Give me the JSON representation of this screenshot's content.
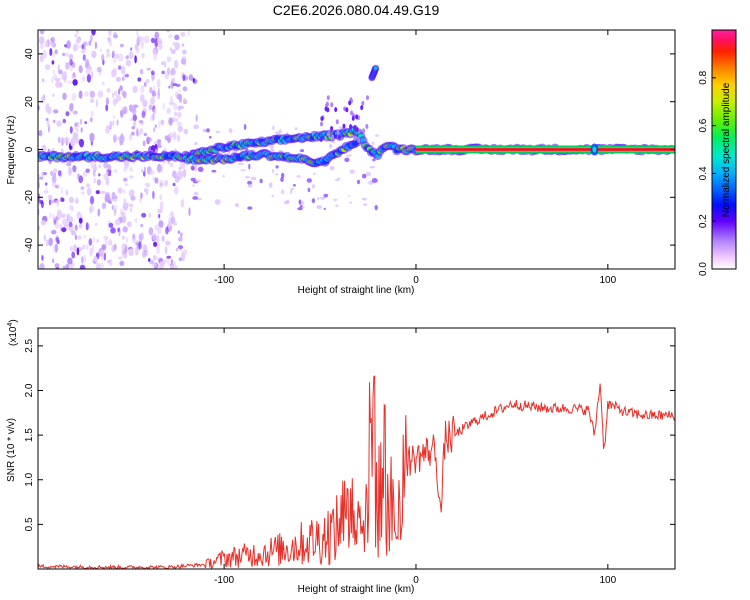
{
  "figure_title": "C2E6.2026.080.04.49.G19",
  "colors": {
    "snr_line": "#e8302a",
    "carrier": "#e8103a",
    "axis": "#000000",
    "background": "#ffffff"
  },
  "chart_data": [
    {
      "type": "heatmap",
      "name": "spectrogram",
      "title": "",
      "xlabel": "Height of straight line (km)",
      "ylabel": "Frequency (Hz)",
      "xlim": [
        -197,
        135
      ],
      "ylim": [
        -50,
        50
      ],
      "xticks": [
        -100,
        0,
        100
      ],
      "xtick_labels": [
        "-100",
        "0",
        "100"
      ],
      "yticks": [
        -40,
        -20,
        0,
        20,
        40
      ],
      "ytick_labels": [
        "-40",
        "-20",
        "0",
        "20",
        "40"
      ],
      "series": [
        {
          "name": "noise-region",
          "x_range": [
            -197,
            -120
          ],
          "freq_range": [
            -50,
            50
          ]
        },
        {
          "name": "main-signal-track",
          "points": [
            [
              -197,
              -3
            ],
            [
              -120,
              -3
            ],
            [
              -100,
              1
            ],
            [
              -80,
              3
            ],
            [
              -60,
              5
            ],
            [
              -40,
              6
            ],
            [
              -30,
              8
            ],
            [
              -25,
              0
            ],
            [
              -20,
              -2
            ],
            [
              -15,
              2
            ],
            [
              -10,
              0
            ],
            [
              0,
              0
            ],
            [
              135,
              0
            ]
          ]
        },
        {
          "name": "diverging-branch",
          "points": [
            [
              -120,
              -4
            ],
            [
              -100,
              -4
            ],
            [
              -80,
              -2
            ],
            [
              -60,
              -4
            ],
            [
              -50,
              -6
            ],
            [
              -40,
              -1
            ],
            [
              -30,
              4
            ]
          ]
        },
        {
          "name": "satellite-feature",
          "points": [
            [
              -23,
              30
            ],
            [
              -21,
              34
            ]
          ]
        },
        {
          "name": "carrier-line",
          "x_range": [
            0,
            135
          ],
          "freq": 0
        },
        {
          "name": "blip",
          "x": 93,
          "freq": 0
        }
      ],
      "colorbar": {
        "label": "Normalized spectral amplitude",
        "range": [
          0,
          1
        ],
        "ticks": [
          0.0,
          0.2,
          0.4,
          0.6,
          0.8
        ],
        "tick_labels": [
          "0.0",
          "0.2",
          "0.4",
          "0.6",
          "0.8"
        ],
        "colormap": [
          "#ffffff",
          "#f0c8ff",
          "#b080ff",
          "#6000ff",
          "#0010ff",
          "#0060ff",
          "#00b0ff",
          "#00e8d0",
          "#00f060",
          "#60f000",
          "#c8f000",
          "#ffd000",
          "#ff8000",
          "#ff2000",
          "#ff1060",
          "#ff20a0"
        ]
      }
    },
    {
      "type": "line",
      "name": "snr",
      "title": "",
      "xlabel": "Height of straight line (km)",
      "ylabel": "SNR (10 * v/v)",
      "scale_label": "(x10^4)",
      "scale_base": "(x10",
      "scale_exp": "4",
      "xlim": [
        -197,
        135
      ],
      "ylim": [
        0,
        2.7
      ],
      "xticks": [
        -100,
        0,
        100
      ],
      "xtick_labels": [
        "-100",
        "0",
        "100"
      ],
      "yticks": [
        0.5,
        1.0,
        1.5,
        2.0,
        2.5
      ],
      "ytick_labels": [
        "0.5",
        "1.0",
        "1.5",
        "2.0",
        "2.5"
      ],
      "series": [
        {
          "name": "SNR",
          "x": [
            -197,
            -160,
            -130,
            -110,
            -100,
            -90,
            -80,
            -70,
            -60,
            -50,
            -40,
            -35,
            -30,
            -25,
            -22,
            -20,
            -17,
            -15,
            -10,
            -8,
            -5,
            0,
            5,
            10,
            13,
            15,
            20,
            30,
            40,
            50,
            60,
            70,
            80,
            90,
            93,
            96,
            98,
            100,
            110,
            120,
            135
          ],
          "y": [
            0.03,
            0.02,
            0.02,
            0.05,
            0.12,
            0.15,
            0.18,
            0.22,
            0.28,
            0.35,
            0.45,
            0.7,
            0.5,
            0.9,
            1.8,
            0.6,
            1.2,
            0.9,
            0.4,
            0.3,
            1.2,
            1.25,
            1.3,
            1.35,
            0.6,
            1.45,
            1.5,
            1.65,
            1.75,
            1.85,
            1.82,
            1.8,
            1.8,
            1.78,
            1.5,
            2.1,
            1.3,
            1.85,
            1.75,
            1.72,
            1.72
          ]
        }
      ]
    }
  ]
}
